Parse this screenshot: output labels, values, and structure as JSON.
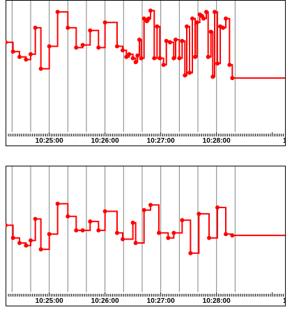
{
  "chart_data": [
    {
      "type": "line",
      "step": true,
      "x_tick_labels": [
        "10:25:00",
        "10:26:00",
        "10:27:00",
        "10:28:00"
      ],
      "series": [
        {
          "color": "#ff0000",
          "points": [
            [
              "10:24:13",
              0.68
            ],
            [
              "10:24:21",
              0.61
            ],
            [
              "10:24:28",
              0.57
            ],
            [
              "10:24:35",
              0.55
            ],
            [
              "10:24:40",
              0.59
            ],
            [
              "10:24:45",
              0.79
            ],
            [
              "10:24:51",
              0.48
            ],
            [
              "10:25:00",
              0.65
            ],
            [
              "10:25:09",
              0.91
            ],
            [
              "10:25:20",
              0.79
            ],
            [
              "10:25:29",
              0.64
            ],
            [
              "10:25:36",
              0.66
            ],
            [
              "10:25:44",
              0.77
            ],
            [
              "10:25:53",
              0.64
            ],
            [
              "10:26:00",
              0.83
            ],
            [
              "10:26:13",
              0.65
            ],
            [
              "10:26:19",
              0.62
            ],
            [
              "10:26:23",
              0.57
            ],
            [
              "10:26:26",
              0.59
            ],
            [
              "10:26:30",
              0.56
            ],
            [
              "10:26:33",
              0.53
            ],
            [
              "10:26:35",
              0.58
            ],
            [
              "10:26:37",
              0.7
            ],
            [
              "10:26:39",
              0.56
            ],
            [
              "10:26:42",
              0.86
            ],
            [
              "10:26:45",
              0.84
            ],
            [
              "10:26:47",
              0.86
            ],
            [
              "10:26:49",
              0.92
            ],
            [
              "10:26:53",
              0.56
            ],
            [
              "10:26:56",
              0.8
            ],
            [
              "10:26:59",
              0.56
            ],
            [
              "10:27:03",
              0.51
            ],
            [
              "10:27:06",
              0.69
            ],
            [
              "10:27:10",
              0.68
            ],
            [
              "10:27:14",
              0.56
            ],
            [
              "10:27:16",
              0.7
            ],
            [
              "10:27:20",
              0.56
            ],
            [
              "10:27:23",
              0.69
            ],
            [
              "10:27:26",
              0.43
            ],
            [
              "10:27:28",
              0.8
            ],
            [
              "10:27:31",
              0.45
            ],
            [
              "10:27:34",
              0.86
            ],
            [
              "10:27:37",
              0.57
            ],
            [
              "10:27:39",
              0.83
            ],
            [
              "10:27:42",
              0.89
            ],
            [
              "10:27:44",
              0.88
            ],
            [
              "10:27:46",
              0.86
            ],
            [
              "10:27:49",
              0.91
            ],
            [
              "10:27:51",
              0.57
            ],
            [
              "10:27:54",
              0.76
            ],
            [
              "10:27:56",
              0.42
            ],
            [
              "10:27:58",
              0.91
            ],
            [
              "10:28:01",
              0.52
            ],
            [
              "10:28:04",
              0.8
            ],
            [
              "10:28:07",
              0.79
            ],
            [
              "10:28:10",
              0.86
            ],
            [
              "10:28:14",
              0.51
            ],
            [
              "10:28:17",
              0.41
            ]
          ]
        }
      ]
    },
    {
      "type": "line",
      "step": true,
      "x_tick_labels": [
        "10:25:00",
        "10:26:00",
        "10:27:00",
        "10:28:00"
      ],
      "series": [
        {
          "color": "#ff0000",
          "points": [
            [
              "10:24:13",
              0.53
            ],
            [
              "10:24:21",
              0.43
            ],
            [
              "10:24:28",
              0.39
            ],
            [
              "10:24:35",
              0.37
            ],
            [
              "10:24:40",
              0.41
            ],
            [
              "10:24:45",
              0.58
            ],
            [
              "10:24:51",
              0.34
            ],
            [
              "10:25:00",
              0.46
            ],
            [
              "10:25:09",
              0.7
            ],
            [
              "10:25:20",
              0.6
            ],
            [
              "10:25:29",
              0.49
            ],
            [
              "10:25:36",
              0.49
            ],
            [
              "10:25:44",
              0.56
            ],
            [
              "10:25:53",
              0.49
            ],
            [
              "10:26:00",
              0.64
            ],
            [
              "10:26:13",
              0.47
            ],
            [
              "10:26:19",
              0.42
            ],
            [
              "10:26:30",
              0.55
            ],
            [
              "10:26:33",
              0.39
            ],
            [
              "10:26:42",
              0.65
            ],
            [
              "10:26:49",
              0.69
            ],
            [
              "10:26:58",
              0.47
            ],
            [
              "10:27:08",
              0.43
            ],
            [
              "10:27:14",
              0.47
            ],
            [
              "10:27:23",
              0.57
            ],
            [
              "10:27:32",
              0.31
            ],
            [
              "10:27:41",
              0.62
            ],
            [
              "10:27:52",
              0.43
            ],
            [
              "10:28:01",
              0.67
            ],
            [
              "10:28:10",
              0.46
            ],
            [
              "10:28:17",
              0.45
            ]
          ]
        }
      ]
    }
  ]
}
